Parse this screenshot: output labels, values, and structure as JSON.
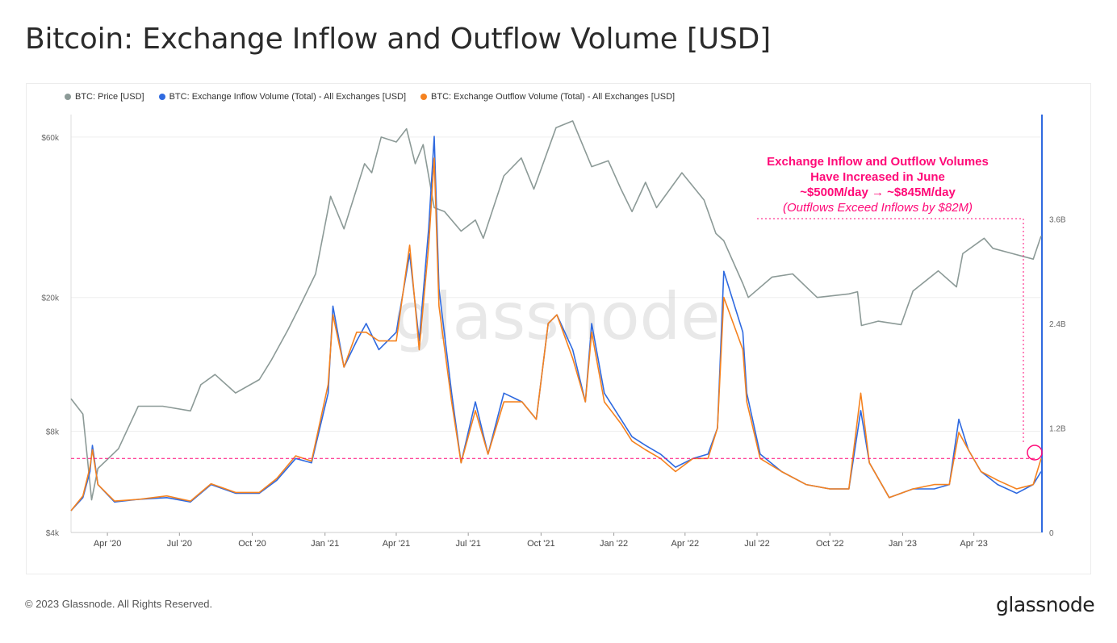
{
  "title": "Bitcoin: Exchange Inflow and Outflow Volume [USD]",
  "legend": [
    {
      "label": "BTC: Price [USD]",
      "color": "#8c9a97"
    },
    {
      "label": "BTC: Exchange Inflow Volume (Total) - All Exchanges [USD]",
      "color": "#2f6ae0"
    },
    {
      "label": "BTC: Exchange Outflow Volume (Total) - All Exchanges [USD]",
      "color": "#f5821f"
    }
  ],
  "annotation": {
    "line1": "Exchange Inflow and Outflow Volumes",
    "line2": "Have Increased in June",
    "line3": "~$500M/day → ~$845M/day",
    "line4": "(Outflows Exceed Inflows by $82M)"
  },
  "watermark": "glassnode",
  "footer": {
    "copyright": "© 2023 Glassnode. All Rights Reserved.",
    "logo": "glassnode"
  },
  "chart_data": {
    "type": "line",
    "x_ticks": [
      "Apr '20",
      "Jul '20",
      "Oct '20",
      "Jan '21",
      "Apr '21",
      "Jul '21",
      "Oct '21",
      "Jan '22",
      "Apr '22",
      "Jul '22",
      "Oct '22",
      "Jan '23",
      "Apr '23"
    ],
    "y_left_ticks": [
      "$60k",
      "$20k",
      "$8k",
      "$4k"
    ],
    "y_left_tick_values": [
      60000,
      20000,
      8000,
      4000
    ],
    "y_left_scale": "log",
    "y_left_range": [
      4000,
      70000
    ],
    "y_right_ticks": [
      "3.6B",
      "2.4B",
      "1.2B",
      "0"
    ],
    "y_right_tick_values": [
      3.6,
      2.4,
      1.2,
      0
    ],
    "y_right_unit": "B USD",
    "y_right_range": [
      0,
      4.8
    ],
    "x_range": [
      "2020-02-15",
      "2023-06-25"
    ],
    "reference_line_value_b": 0.85,
    "series": [
      {
        "name": "BTC: Price [USD]",
        "axis": "left",
        "color": "#8c9a97",
        "x": [
          "2020-02-15",
          "2020-03-01",
          "2020-03-12",
          "2020-03-20",
          "2020-04-15",
          "2020-05-10",
          "2020-06-10",
          "2020-07-15",
          "2020-07-28",
          "2020-08-15",
          "2020-09-10",
          "2020-10-10",
          "2020-10-25",
          "2020-11-15",
          "2020-12-01",
          "2020-12-20",
          "2021-01-08",
          "2021-01-25",
          "2021-02-20",
          "2021-03-01",
          "2021-03-13",
          "2021-04-01",
          "2021-04-14",
          "2021-04-25",
          "2021-05-05",
          "2021-05-19",
          "2021-06-01",
          "2021-06-22",
          "2021-07-10",
          "2021-07-20",
          "2021-08-15",
          "2021-09-06",
          "2021-09-22",
          "2021-10-20",
          "2021-11-10",
          "2021-12-04",
          "2021-12-25",
          "2022-01-10",
          "2022-01-24",
          "2022-02-10",
          "2022-02-24",
          "2022-03-28",
          "2022-04-25",
          "2022-05-10",
          "2022-05-20",
          "2022-06-13",
          "2022-06-20",
          "2022-07-20",
          "2022-08-15",
          "2022-09-15",
          "2022-10-25",
          "2022-11-05",
          "2022-11-10",
          "2022-12-01",
          "2022-12-30",
          "2023-01-14",
          "2023-02-15",
          "2023-03-10",
          "2023-03-18",
          "2023-04-14",
          "2023-04-25",
          "2023-05-20",
          "2023-06-15",
          "2023-06-25"
        ],
        "values": [
          10000,
          9000,
          5000,
          6200,
          7100,
          9500,
          9500,
          9200,
          11000,
          11800,
          10400,
          11400,
          13000,
          16000,
          19000,
          23500,
          40000,
          32000,
          50000,
          47000,
          60000,
          58000,
          63500,
          50000,
          57000,
          37000,
          36000,
          31500,
          34000,
          30000,
          46000,
          52000,
          42000,
          64000,
          67000,
          49000,
          51000,
          42000,
          36000,
          44000,
          37000,
          47000,
          39000,
          31000,
          29500,
          22000,
          20000,
          23000,
          23500,
          20000,
          20500,
          20800,
          16500,
          17000,
          16600,
          20900,
          24000,
          21500,
          27000,
          30000,
          28000,
          27000,
          26000,
          30500
        ]
      },
      {
        "name": "BTC: Exchange Inflow Volume (Total) - All Exchanges [USD]",
        "axis": "right",
        "color": "#2f6ae0",
        "x": [
          "2020-02-15",
          "2020-03-01",
          "2020-03-10",
          "2020-03-13",
          "2020-03-20",
          "2020-04-10",
          "2020-05-10",
          "2020-06-15",
          "2020-07-15",
          "2020-08-10",
          "2020-09-10",
          "2020-10-10",
          "2020-11-01",
          "2020-11-25",
          "2020-12-15",
          "2021-01-05",
          "2021-01-11",
          "2021-01-25",
          "2021-02-10",
          "2021-02-22",
          "2021-03-10",
          "2021-04-01",
          "2021-04-18",
          "2021-04-30",
          "2021-05-12",
          "2021-05-19",
          "2021-05-25",
          "2021-06-10",
          "2021-06-22",
          "2021-07-10",
          "2021-07-26",
          "2021-08-15",
          "2021-09-07",
          "2021-09-25",
          "2021-10-10",
          "2021-10-21",
          "2021-11-10",
          "2021-11-26",
          "2021-12-04",
          "2021-12-20",
          "2022-01-10",
          "2022-01-24",
          "2022-02-10",
          "2022-03-01",
          "2022-03-20",
          "2022-04-11",
          "2022-04-30",
          "2022-05-12",
          "2022-05-20",
          "2022-06-13",
          "2022-06-18",
          "2022-07-05",
          "2022-08-01",
          "2022-09-01",
          "2022-10-01",
          "2022-10-25",
          "2022-11-09",
          "2022-11-20",
          "2022-12-15",
          "2023-01-14",
          "2023-02-10",
          "2023-03-01",
          "2023-03-13",
          "2023-03-25",
          "2023-04-10",
          "2023-05-01",
          "2023-05-25",
          "2023-06-15",
          "2023-06-25"
        ],
        "values": [
          0.25,
          0.4,
          0.7,
          1.0,
          0.55,
          0.35,
          0.38,
          0.4,
          0.35,
          0.55,
          0.45,
          0.45,
          0.6,
          0.85,
          0.8,
          1.6,
          2.6,
          1.9,
          2.2,
          2.4,
          2.1,
          2.3,
          3.2,
          2.2,
          3.5,
          4.55,
          2.8,
          1.6,
          0.8,
          1.5,
          0.9,
          1.6,
          1.5,
          1.3,
          2.4,
          2.5,
          2.1,
          1.5,
          2.4,
          1.6,
          1.3,
          1.1,
          1.0,
          0.9,
          0.75,
          0.85,
          0.9,
          1.2,
          3.0,
          2.3,
          1.6,
          0.9,
          0.7,
          0.55,
          0.5,
          0.5,
          1.4,
          0.8,
          0.4,
          0.5,
          0.5,
          0.55,
          1.3,
          0.95,
          0.7,
          0.55,
          0.45,
          0.55,
          0.7
        ]
      },
      {
        "name": "BTC: Exchange Outflow Volume (Total) - All Exchanges [USD]",
        "axis": "right",
        "color": "#f5821f",
        "x": [
          "2020-02-15",
          "2020-03-01",
          "2020-03-10",
          "2020-03-13",
          "2020-03-20",
          "2020-04-10",
          "2020-05-10",
          "2020-06-15",
          "2020-07-15",
          "2020-08-10",
          "2020-09-10",
          "2020-10-10",
          "2020-11-01",
          "2020-11-25",
          "2020-12-15",
          "2021-01-05",
          "2021-01-11",
          "2021-01-25",
          "2021-02-10",
          "2021-02-22",
          "2021-03-10",
          "2021-04-01",
          "2021-04-18",
          "2021-04-30",
          "2021-05-12",
          "2021-05-19",
          "2021-05-25",
          "2021-06-10",
          "2021-06-22",
          "2021-07-10",
          "2021-07-26",
          "2021-08-15",
          "2021-09-07",
          "2021-09-25",
          "2021-10-10",
          "2021-10-21",
          "2021-11-10",
          "2021-11-26",
          "2021-12-04",
          "2021-12-20",
          "2022-01-10",
          "2022-01-24",
          "2022-02-10",
          "2022-03-01",
          "2022-03-20",
          "2022-04-11",
          "2022-04-30",
          "2022-05-12",
          "2022-05-20",
          "2022-06-13",
          "2022-06-18",
          "2022-07-05",
          "2022-08-01",
          "2022-09-01",
          "2022-10-01",
          "2022-10-25",
          "2022-11-09",
          "2022-11-20",
          "2022-12-15",
          "2023-01-14",
          "2023-02-10",
          "2023-03-01",
          "2023-03-13",
          "2023-03-25",
          "2023-04-10",
          "2023-05-01",
          "2023-05-25",
          "2023-06-15",
          "2023-06-25"
        ],
        "values": [
          0.25,
          0.42,
          0.75,
          0.95,
          0.55,
          0.36,
          0.38,
          0.42,
          0.36,
          0.56,
          0.46,
          0.46,
          0.62,
          0.88,
          0.82,
          1.7,
          2.5,
          1.9,
          2.3,
          2.3,
          2.2,
          2.2,
          3.3,
          2.1,
          3.3,
          4.3,
          2.6,
          1.5,
          0.8,
          1.4,
          0.9,
          1.5,
          1.5,
          1.3,
          2.4,
          2.5,
          2.0,
          1.5,
          2.3,
          1.5,
          1.25,
          1.05,
          0.95,
          0.85,
          0.7,
          0.85,
          0.85,
          1.2,
          2.7,
          2.1,
          1.5,
          0.85,
          0.7,
          0.55,
          0.5,
          0.5,
          1.6,
          0.8,
          0.4,
          0.5,
          0.55,
          0.55,
          1.15,
          0.95,
          0.7,
          0.6,
          0.5,
          0.55,
          0.85
        ]
      }
    ]
  }
}
